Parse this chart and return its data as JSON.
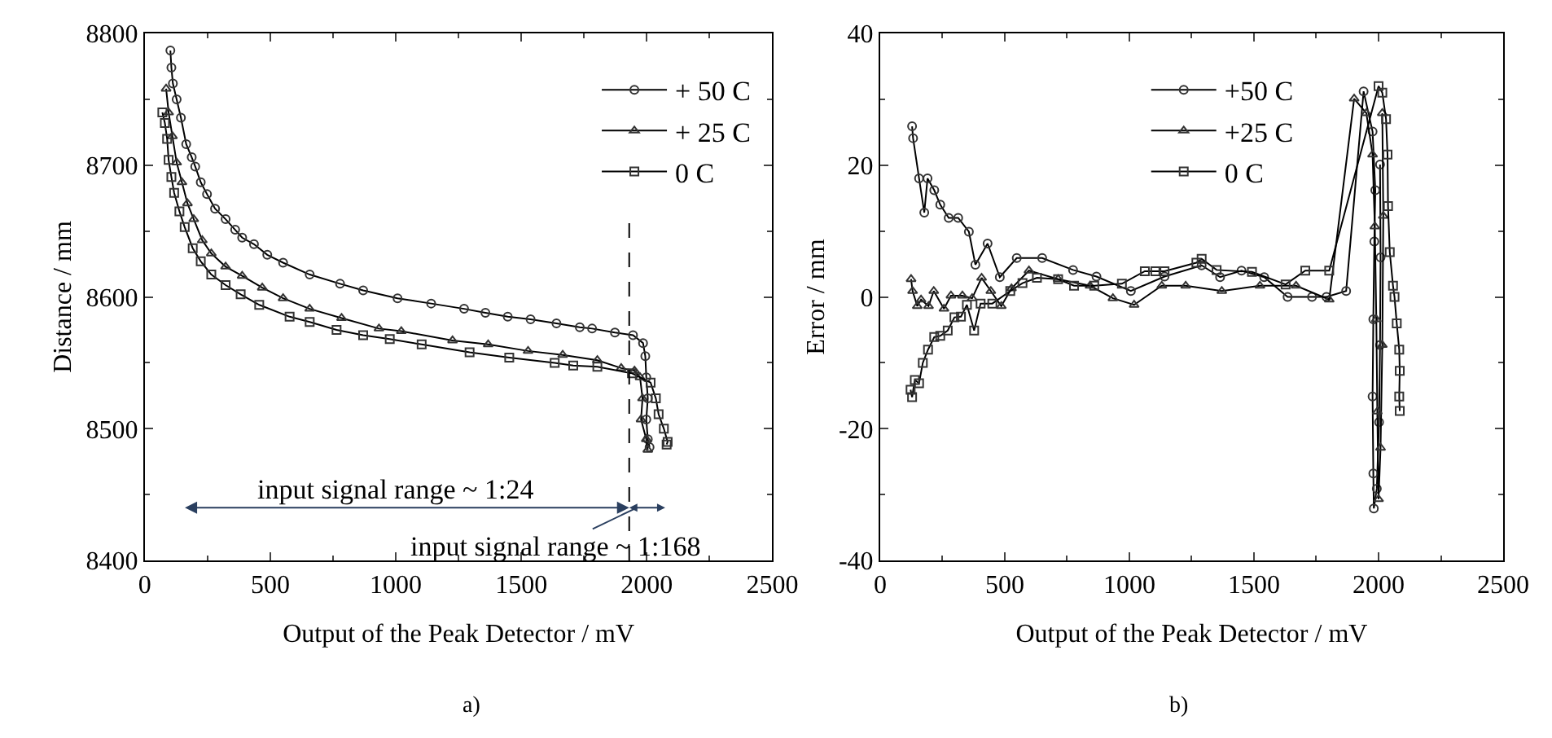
{
  "chart_data": [
    {
      "type": "line",
      "xlabel": "Output of the Peak Detector / mV",
      "ylabel": "Distance / mm",
      "xlim": [
        0,
        2500
      ],
      "ylim": [
        8400,
        8800
      ],
      "xticks": [
        0,
        500,
        1000,
        1500,
        2000,
        2500
      ],
      "yticks": [
        8400,
        8500,
        8600,
        8700,
        8800
      ],
      "legend": "top right",
      "line_style": "solid",
      "series": [
        {
          "name": "+ 50 C",
          "color": "#333333",
          "marker": "circle",
          "x": [
            102,
            106,
            112,
            127,
            144,
            165,
            187,
            201,
            223,
            248,
            280,
            322,
            360,
            388,
            435,
            488,
            551,
            657,
            778,
            870,
            1007,
            1141,
            1272,
            1357,
            1446,
            1537,
            1640,
            1733,
            1782,
            1873,
            1945,
            1985,
            1994,
            1998,
            2004,
            1998,
            2004,
            2011
          ],
          "values": [
            8787,
            8774,
            8762,
            8750,
            8736,
            8716,
            8706,
            8699,
            8687,
            8678,
            8667,
            8659,
            8651,
            8645,
            8640,
            8632,
            8626,
            8617,
            8610,
            8605,
            8599,
            8595,
            8591,
            8588,
            8585,
            8583,
            8580,
            8577,
            8576,
            8573,
            8571,
            8565,
            8555,
            8539,
            8523,
            8507,
            8492,
            8486
          ]
        },
        {
          "name": "+ 25 C",
          "color": "#333333",
          "marker": "triangle",
          "x": [
            85,
            95,
            110,
            127,
            148,
            170,
            195,
            229,
            265,
            322,
            388,
            468,
            551,
            657,
            784,
            933,
            1022,
            1226,
            1368,
            1527,
            1665,
            1803,
            1898,
            1951,
            1973,
            1983,
            1977,
            1998,
            2004
          ],
          "values": [
            8758,
            8740,
            8722,
            8702,
            8687,
            8671,
            8659,
            8643,
            8633,
            8623,
            8616,
            8607,
            8599,
            8591,
            8584,
            8576,
            8574,
            8567,
            8564,
            8559,
            8556,
            8552,
            8546,
            8544,
            8539,
            8523,
            8507,
            8492,
            8484
          ]
        },
        {
          "name": "0 C",
          "color": "#333333",
          "marker": "square",
          "x": [
            70,
            80,
            89,
            95,
            106,
            117,
            138,
            159,
            191,
            223,
            265,
            322,
            382,
            456,
            577,
            657,
            764,
            870,
            976,
            1103,
            1294,
            1452,
            1633,
            1707,
            1803,
            1941,
            2015,
            2036,
            2047,
            2068,
            2083,
            2079
          ],
          "values": [
            8740,
            8732,
            8720,
            8704,
            8691,
            8679,
            8665,
            8653,
            8637,
            8627,
            8617,
            8609,
            8602,
            8594,
            8585,
            8581,
            8575,
            8571,
            8568,
            8564,
            8558,
            8554,
            8550,
            8548,
            8547,
            8542,
            8535,
            8523,
            8511,
            8500,
            8490,
            8488
          ]
        }
      ],
      "ref_lines": [
        {
          "axis": "x",
          "value": 1930,
          "line_style": "dashed",
          "color": "#000000"
        }
      ],
      "annotations": [
        "input signal range ~ 1:24",
        "input signal range ~ 1:168",
        "a)"
      ]
    },
    {
      "type": "line",
      "xlabel": "Output of the Peak Detector / mV",
      "ylabel": "Error / mm",
      "xlim": [
        0,
        2500
      ],
      "ylim": [
        -40,
        40
      ],
      "xticks": [
        0,
        500,
        1000,
        1500,
        2000,
        2500
      ],
      "yticks": [
        -40,
        -20,
        0,
        20,
        40
      ],
      "legend": "top",
      "line_style": "solid",
      "series": [
        {
          "name": "+50 C",
          "color": "#333333",
          "marker": "circle",
          "x": [
            128,
            132,
            156,
            177,
            190,
            217,
            241,
            275,
            313,
            356,
            382,
            431,
            480,
            548,
            650,
            774,
            868,
            1006,
            1141,
            1290,
            1364,
            1450,
            1541,
            1635,
            1733,
            1791,
            1870,
            1940,
            1976,
            1987,
            1983,
            1979,
            1976,
            1979,
            1981,
            1993,
            2002,
            2006,
            2008,
            2006
          ],
          "values": [
            25.9,
            24.1,
            18.0,
            12.8,
            18.0,
            16.2,
            14.0,
            12.0,
            12.0,
            9.9,
            4.9,
            8.1,
            3.0,
            5.9,
            5.9,
            4.1,
            3.1,
            0.9,
            3.1,
            4.8,
            3.0,
            4.0,
            3.0,
            0,
            0,
            0,
            0.9,
            31.2,
            25.1,
            16.2,
            8.4,
            -3.4,
            -15.1,
            -26.8,
            -32.1,
            -29.1,
            -19.0,
            -7.3,
            6.0,
            20.1
          ]
        },
        {
          "name": "+25 C",
          "color": "#333333",
          "marker": "triangle",
          "x": [
            124,
            130,
            149,
            164,
            194,
            215,
            256,
            284,
            330,
            369,
            407,
            444,
            486,
            527,
            597,
            714,
            842,
            934,
            1019,
            1130,
            1226,
            1371,
            1524,
            1669,
            1802,
            1902,
            1951,
            1976,
            1985,
            1991,
            1995,
            2000,
            2008,
            2015,
            2019,
            2015
          ],
          "values": [
            2.7,
            0.9,
            -1.4,
            -0.4,
            -1.4,
            0.9,
            -1.8,
            0.2,
            0.2,
            -0.2,
            2.9,
            0.9,
            -1.4,
            1.3,
            4.0,
            2.7,
            1.7,
            -0.2,
            -1.2,
            1.7,
            1.7,
            0.9,
            1.7,
            1.7,
            -0.4,
            30.1,
            27.9,
            21.6,
            10.7,
            -3.4,
            -17.4,
            -30.7,
            -22.9,
            -7.3,
            12.3,
            27.9
          ]
        },
        {
          "name": "0 C",
          "color": "#333333",
          "marker": "square",
          "x": [
            122,
            128,
            139,
            156,
            171,
            192,
            217,
            241,
            271,
            298,
            324,
            348,
            377,
            403,
            450,
            522,
            571,
            629,
            714,
            778,
            859,
            970,
            1062,
            1104,
            1141,
            1269,
            1290,
            1350,
            1492,
            1627,
            1706,
            1802,
            2000,
            2015,
            2030,
            2036,
            2038,
            2045,
            2058,
            2064,
            2073,
            2083,
            2085,
            2083,
            2085
          ],
          "values": [
            -14.1,
            -15.2,
            -12.6,
            -13.1,
            -10.0,
            -8.0,
            -6.1,
            -5.9,
            -5.1,
            -3.1,
            -3.0,
            -1.2,
            -5.1,
            -1.0,
            -1.0,
            0.9,
            2.1,
            2.9,
            2.7,
            1.7,
            1.7,
            2.0,
            3.9,
            3.9,
            3.9,
            5.2,
            5.8,
            4.1,
            3.8,
            1.9,
            4.0,
            4.0,
            32.0,
            31.0,
            27.0,
            21.6,
            13.8,
            6.8,
            1.7,
            0,
            -4.0,
            -8.0,
            -11.2,
            -15.1,
            -17.3
          ]
        }
      ],
      "annotations": [
        "b)"
      ]
    }
  ]
}
